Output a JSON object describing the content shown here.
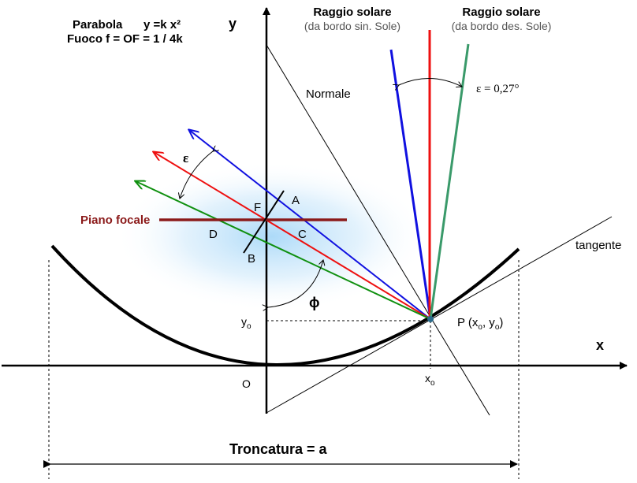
{
  "header": {
    "line1_label": "Parabola",
    "line1_formula": "y =k  x²",
    "line2_label": "Fuoco  f = OF = 1 / 4k"
  },
  "axes": {
    "y_label": "y",
    "x_label": "x",
    "origin_label": "O",
    "yo_label": "y",
    "yo_sub": "o",
    "xo_label": "x",
    "xo_sub": "o"
  },
  "rays": {
    "left_title": "Raggio solare",
    "left_subtitle": "(da bordo sin. Sole)",
    "right_title": "Raggio solare",
    "right_subtitle": "(da bordo des. Sole)",
    "epsilon_value": "ε = 0,27°",
    "epsilon_symbol": "ε"
  },
  "labels": {
    "normal": "Normale",
    "tangent": "tangente",
    "focal_plane": "Piano focale",
    "point_P": "P (x",
    "point_P_sub1": "o",
    "point_P_mid": ", y",
    "point_P_sub2": "o",
    "point_P_end": ")",
    "F": "F",
    "A": "A",
    "B": "B",
    "C": "C",
    "D": "D",
    "phi": "ϕ",
    "truncation": "Troncatura =  a"
  },
  "colors": {
    "blue": "#1010e0",
    "red": "#ee1010",
    "green": "#109010",
    "teal_green": "#3a9a6a",
    "focal_plane": "#8b1a1a",
    "glow": "#a8d8f8"
  }
}
